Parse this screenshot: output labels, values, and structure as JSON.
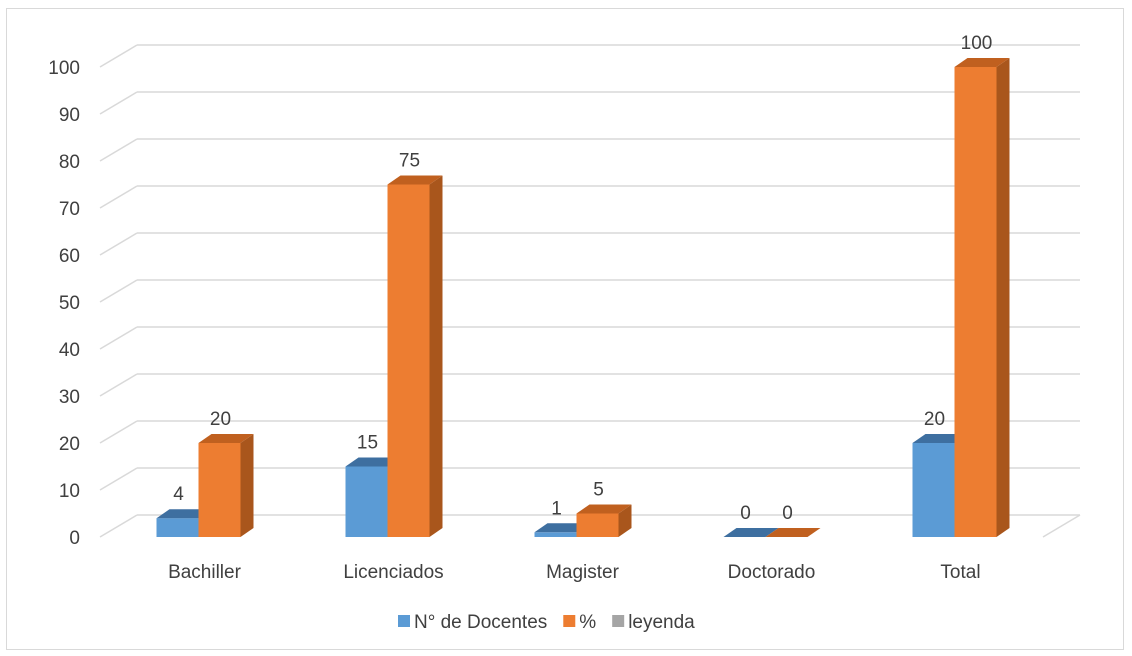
{
  "chart_data": {
    "type": "bar",
    "style": "3d-clustered-column",
    "categories": [
      "Bachiller",
      "Licenciados",
      "Magister",
      "Doctorado",
      "Total"
    ],
    "series": [
      {
        "name": "N° de Docentes",
        "values": [
          4,
          15,
          1,
          0,
          20
        ],
        "color": "#5b9bd5",
        "side_color": "#41719c",
        "top_color": "#3e6fa0"
      },
      {
        "name": "%",
        "values": [
          20,
          75,
          5,
          0,
          100
        ],
        "color": "#ed7d31",
        "side_color": "#a9561c",
        "top_color": "#c0601f"
      },
      {
        "name": "leyenda",
        "values": [
          null,
          null,
          null,
          null,
          null
        ],
        "color": "#a5a5a5"
      }
    ],
    "yticks": [
      0,
      10,
      20,
      30,
      40,
      50,
      60,
      70,
      80,
      90,
      100
    ],
    "ylim": [
      0,
      100
    ],
    "grid": true,
    "legend_position": "bottom",
    "data_labels": true,
    "title": "",
    "xlabel": "",
    "ylabel": ""
  }
}
